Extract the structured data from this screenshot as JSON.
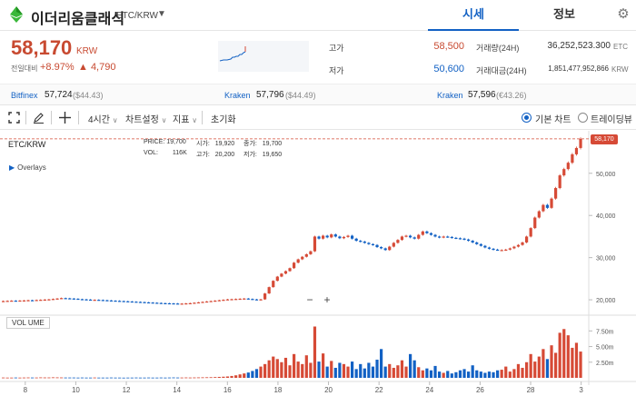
{
  "header": {
    "title": "이더리움클래식",
    "pair": "ETC/KRW",
    "tabs": [
      {
        "label": "시세",
        "active": true
      },
      {
        "label": "정보",
        "active": false
      }
    ]
  },
  "price": {
    "current": "58,170",
    "unit": "KRW",
    "change_label": "전일대비",
    "change_pct": "+8.97%",
    "change_amt": "▲ 4,790"
  },
  "stats": {
    "high_label": "고가",
    "high_value": "58,500",
    "low_label": "저가",
    "low_value": "50,600",
    "vol_label": "거래량(24H)",
    "vol_value": "36,252,523.300",
    "vol_unit": "ETC",
    "amt_label": "거래대금(24H)",
    "amt_value": "1,851,477,952,866",
    "amt_unit": "KRW"
  },
  "exchanges": [
    {
      "name": "Bitfinex",
      "price": "57,724",
      "sub": "($44.43)"
    },
    {
      "name": "Kraken",
      "price": "57,796",
      "sub": "($44.49)"
    },
    {
      "name": "Kraken",
      "price": "57,596",
      "sub": "(€43.26)"
    }
  ],
  "toolbar": {
    "interval": "4시간",
    "chart_settings": "차트설정",
    "indicators": "지표",
    "reset": "초기화",
    "basic_chart": "기본 차트",
    "tradingview": "트레이딩뷰"
  },
  "chart": {
    "pair": "ETC/KRW",
    "overlays": "Overlays",
    "ohlc": {
      "price_label": "PRICE:",
      "price": "19,700",
      "open_label": "시가:",
      "open": "19,920",
      "close_label": "종가:",
      "close": "19,700",
      "vol_label": "VOL:",
      "vol": "116K",
      "high_label": "고가:",
      "high": "20,200",
      "low_label": "저가:",
      "low": "19,650"
    },
    "last_price_badge": "58,170",
    "volume_label": "VOL UME",
    "zoom_out": "−",
    "zoom_in": "+"
  },
  "colors": {
    "up": "#d64a36",
    "down": "#1261c4",
    "accent": "#1261c4"
  },
  "chart_data": {
    "type": "candlestick",
    "price_axis_ticks": [
      "20,000",
      "30,000",
      "40,000",
      "50,000"
    ],
    "price_ylim": [
      17000,
      59000
    ],
    "volume_axis_ticks": [
      "2.50m",
      "5.00m",
      "7.50m"
    ],
    "volume_ylim": [
      0,
      9000000
    ],
    "x_ticks": [
      "8",
      "10",
      "12",
      "14",
      "16",
      "18",
      "20",
      "22",
      "24",
      "26",
      "28",
      "3"
    ],
    "x_range_days": [
      7,
      30.3
    ],
    "close_series": [
      19700,
      19750,
      19800,
      19760,
      19820,
      19850,
      19900,
      19880,
      19950,
      20000,
      20050,
      20100,
      20200,
      20300,
      20400,
      20350,
      20300,
      20250,
      20150,
      20100,
      20050,
      20000,
      20000,
      19950,
      19900,
      19850,
      19800,
      19750,
      19700,
      19650,
      19600,
      19550,
      19500,
      19450,
      19400,
      19350,
      19300,
      19250,
      19200,
      19180,
      19150,
      19120,
      19100,
      19100,
      19150,
      19200,
      19300,
      19400,
      19500,
      19600,
      19700,
      19800,
      19900,
      20000,
      20100,
      20150,
      20200,
      20250,
      20300,
      20200,
      20100,
      20000,
      20100,
      21500,
      23000,
      24500,
      25500,
      26200,
      26800,
      27500,
      28800,
      29600,
      30200,
      30800,
      31500,
      35000,
      34500,
      35200,
      34800,
      35500,
      35000,
      34600,
      34900,
      35200,
      34500,
      34000,
      33800,
      33500,
      33200,
      33000,
      32500,
      32200,
      31800,
      32600,
      33500,
      34200,
      35000,
      35200,
      34800,
      34500,
      35400,
      36200,
      35800,
      35400,
      35000,
      34800,
      35000,
      34900,
      34700,
      34600,
      34500,
      34300,
      34000,
      33600,
      33200,
      32800,
      32400,
      32100,
      31900,
      31800,
      31800,
      31900,
      32200,
      32600,
      33000,
      33600,
      35000,
      37000,
      39500,
      41000,
      42500,
      41800,
      44000,
      46500,
      49500,
      51000,
      52500,
      54500,
      56000,
      58170
    ],
    "volume_series": [
      0.05,
      0.04,
      0.04,
      0.05,
      0.04,
      0.05,
      0.06,
      0.05,
      0.05,
      0.07,
      0.06,
      0.06,
      0.08,
      0.07,
      0.06,
      0.05,
      0.05,
      0.05,
      0.04,
      0.05,
      0.04,
      0.04,
      0.05,
      0.04,
      0.04,
      0.04,
      0.05,
      0.04,
      0.04,
      0.03,
      0.04,
      0.04,
      0.05,
      0.04,
      0.04,
      0.05,
      0.04,
      0.04,
      0.05,
      0.04,
      0.05,
      0.06,
      0.05,
      0.05,
      0.06,
      0.05,
      0.06,
      0.07,
      0.08,
      0.09,
      0.1,
      0.12,
      0.15,
      0.18,
      0.22,
      0.3,
      0.4,
      0.55,
      0.7,
      0.85,
      1.1,
      1.4,
      1.8,
      2.2,
      2.8,
      3.4,
      3.0,
      2.5,
      3.2,
      2.0,
      3.8,
      2.6,
      2.2,
      3.6,
      2.4,
      8.2,
      2.6,
      3.9,
      1.8,
      2.7,
      1.6,
      2.4,
      2.2,
      1.8,
      2.6,
      1.4,
      2.2,
      1.5,
      2.4,
      1.8,
      2.9,
      4.6,
      1.8,
      2.2,
      1.6,
      2.0,
      2.8,
      1.8,
      3.8,
      2.8,
      1.7,
      1.2,
      1.5,
      1.2,
      1.9,
      1.0,
      0.8,
      1.1,
      0.7,
      0.9,
      1.2,
      1.4,
      1.0,
      2.0,
      1.2,
      1.0,
      0.8,
      1.0,
      0.9,
      1.2,
      1.3,
      1.8,
      1.0,
      1.4,
      2.2,
      1.6,
      2.5,
      3.8,
      2.6,
      3.4,
      4.6,
      3.0,
      5.2,
      4.0,
      7.2,
      7.8,
      6.8,
      4.8,
      5.6,
      4.2
    ]
  }
}
